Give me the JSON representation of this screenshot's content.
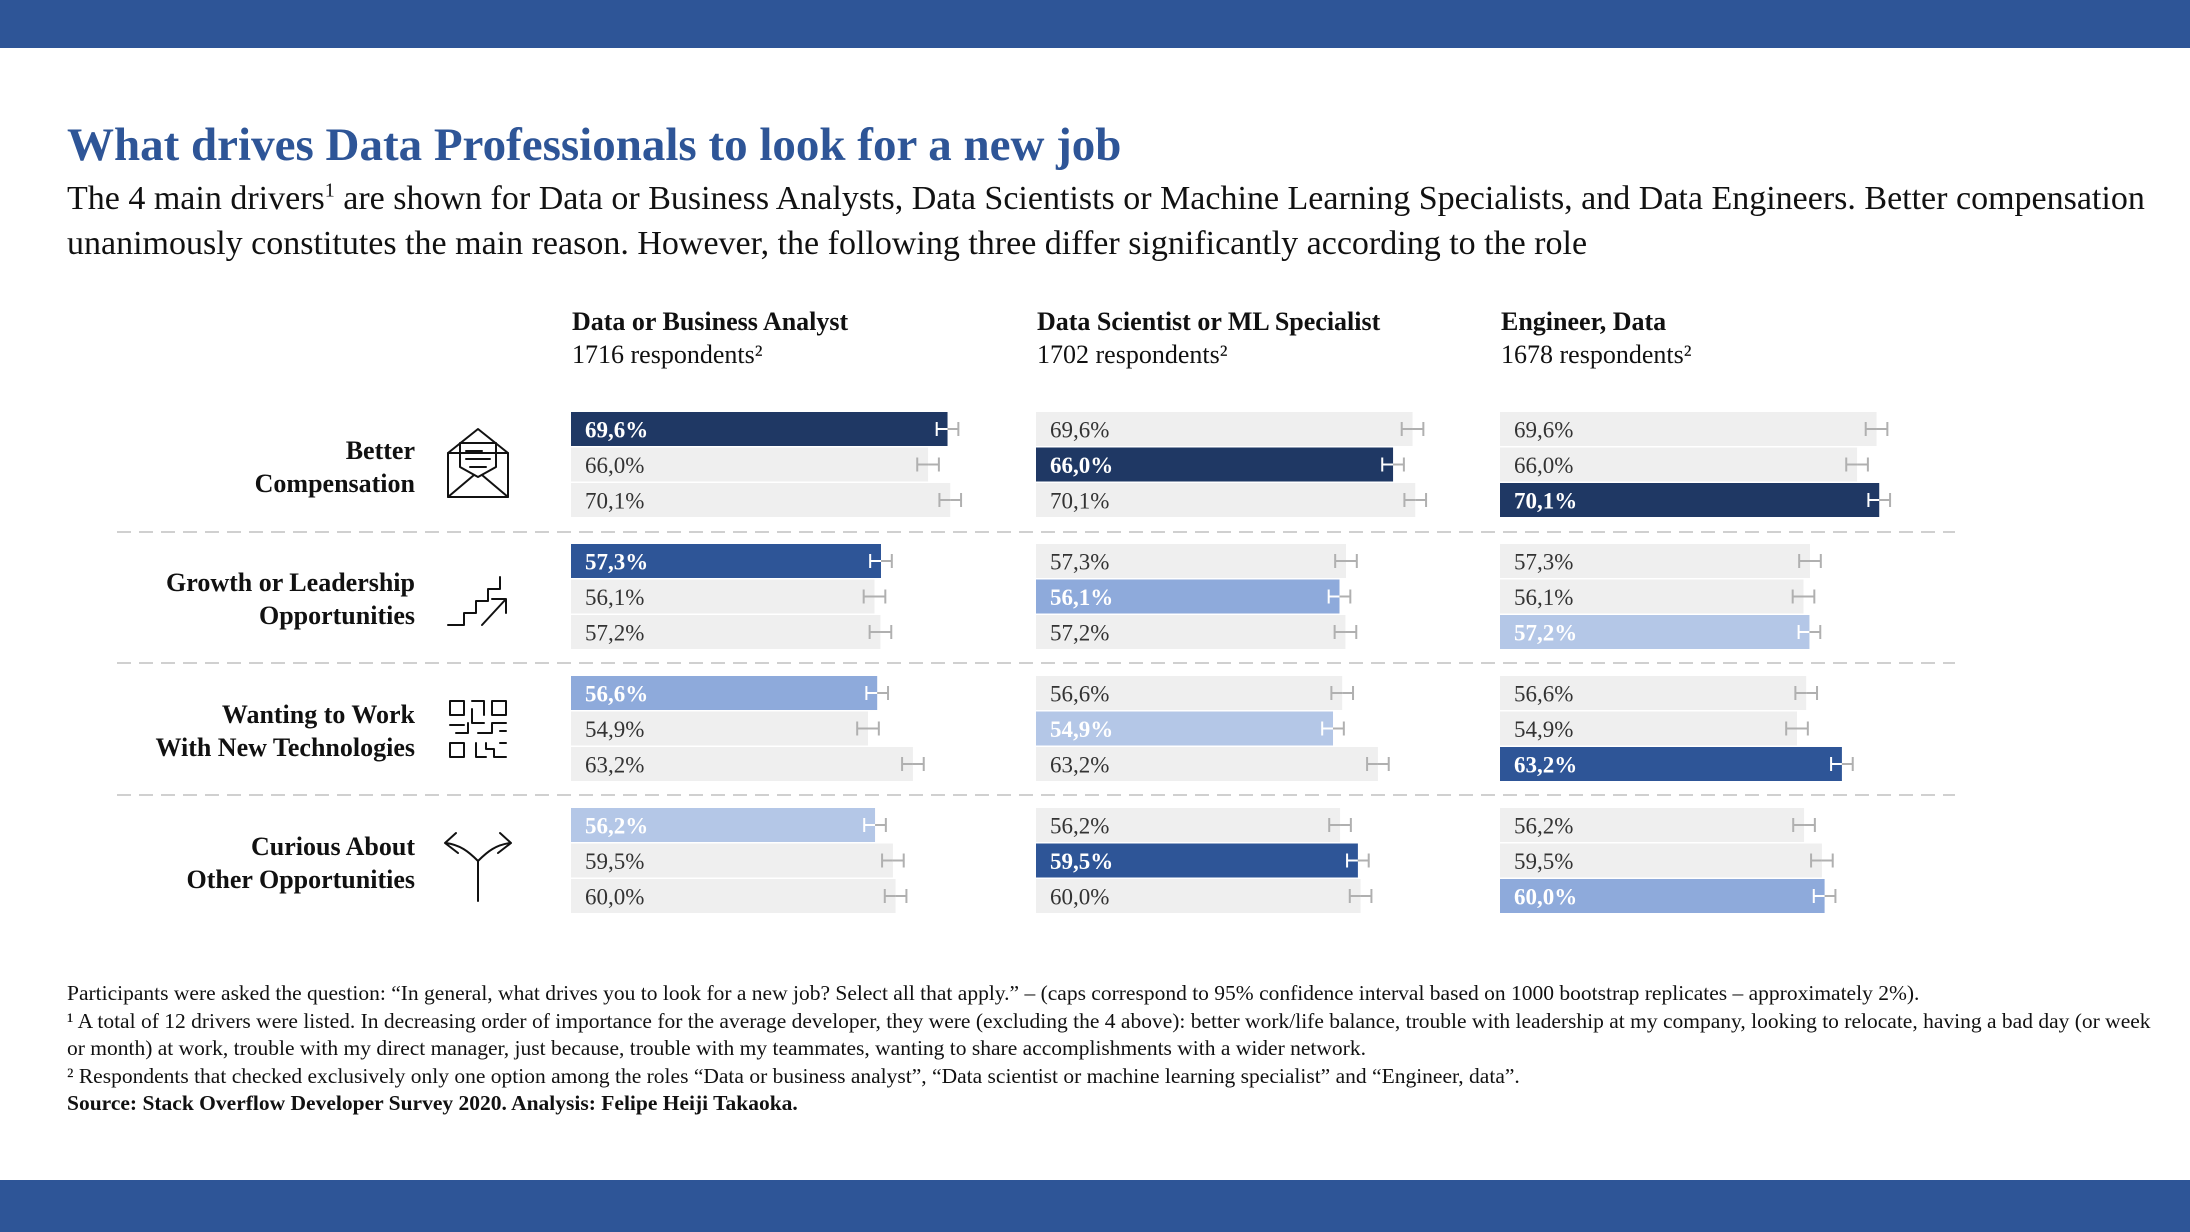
{
  "header": {
    "title": "What drives Data Professionals to look for a new job",
    "subtitle_a": "The 4 main drivers",
    "subtitle_sup": "1",
    "subtitle_b": " are shown for Data or Business Analysts, Data Scientists or Machine Learning Specialists, and Data Engineers. Better compensation unanimously constitutes the main reason. However, the following three differ significantly according to the role"
  },
  "colors": {
    "band": "#2e5597",
    "title": "#2e5597",
    "background_bar": "#efefef",
    "highlight_rank1": "#1f3864",
    "highlight_rank2": "#2e5597",
    "highlight_rank3": "#8eaadb",
    "highlight_rank4": "#b4c7e7",
    "error_cap": "#b0b0b0"
  },
  "chart_data": {
    "type": "bar",
    "orientation": "horizontal",
    "value_unit": "%",
    "role_order": [
      "Data or Business Analyst",
      "Data Scientist or ML Specialist",
      "Engineer, Data"
    ],
    "panels": [
      {
        "title": "Data or Business Analyst",
        "respondents": "1716 respondents²"
      },
      {
        "title": "Data Scientist or ML Specialist",
        "respondents": "1702 respondents²"
      },
      {
        "title": "Engineer, Data",
        "respondents": "1678 respondents²"
      }
    ],
    "drivers": [
      {
        "label_lines": [
          "Better",
          "Compensation"
        ],
        "icon": "envelope-icon",
        "values": [
          69.6,
          66.0,
          70.1
        ],
        "labels": [
          "69,6%",
          "66,0%",
          "70,1%"
        ],
        "error": 2
      },
      {
        "label_lines": [
          "Growth or Leadership",
          "Opportunities"
        ],
        "icon": "stairs-arrow-icon",
        "values": [
          57.3,
          56.1,
          57.2
        ],
        "labels": [
          "57,3%",
          "56,1%",
          "57,2%"
        ],
        "error": 2
      },
      {
        "label_lines": [
          "Wanting to Work",
          "With New Technologies"
        ],
        "icon": "qr-code-icon",
        "values": [
          56.6,
          54.9,
          63.2
        ],
        "labels": [
          "56,6%",
          "54,9%",
          "63,2%"
        ],
        "error": 2
      },
      {
        "label_lines": [
          "Curious About",
          "Other Opportunities"
        ],
        "icon": "fork-arrows-icon",
        "values": [
          56.2,
          59.5,
          60.0
        ],
        "labels": [
          "56,2%",
          "59,5%",
          "60,0%"
        ],
        "error": 2
      }
    ],
    "highlight_rank_per_panel": [
      [
        1,
        2,
        3,
        4
      ],
      [
        1,
        3,
        4,
        2
      ],
      [
        1,
        4,
        2,
        3
      ]
    ],
    "xlim": [
      0,
      100
    ],
    "grid": false
  },
  "notes": {
    "line1": "Participants were asked the question: “In general, what drives you to look for a new job? Select all that apply.” – (caps correspond to 95% confidence interval based on 1000 bootstrap replicates – approximately 2%).",
    "line2": "¹ A total of 12 drivers were listed. In decreasing order of importance for the average developer, they were (excluding the 4 above): better work/life balance, trouble with leadership at my company, looking to relocate, having a bad day (or week or month) at work, trouble with my direct manager, just because, trouble with my teammates, wanting to share accomplishments with a wider network.",
    "line3": "² Respondents that checked exclusively only one option among the roles “Data or business analyst”, “Data scientist or machine learning specialist” and “Engineer, data”.",
    "source": "Source: Stack Overflow Developer Survey 2020. Analysis: Felipe Heiji Takaoka."
  }
}
